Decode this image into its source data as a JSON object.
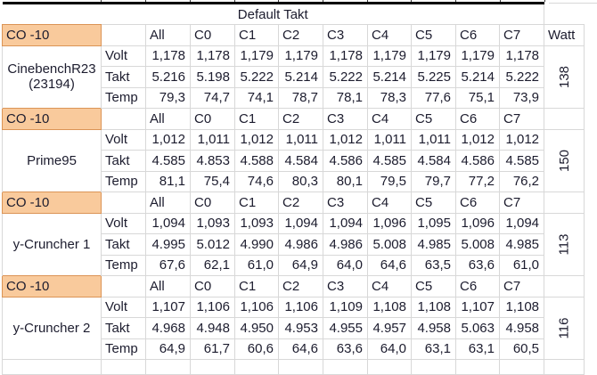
{
  "title": "Default Takt",
  "watt_header": "Watt",
  "columns": [
    "All",
    "C0",
    "C1",
    "C2",
    "C3",
    "C4",
    "C5",
    "C6",
    "C7"
  ],
  "colors": {
    "highlight_fill": "#f9ca9c",
    "highlight_border": "#db9456",
    "gridline": "#d8d8d8",
    "thick_border": "#000000"
  },
  "sections": [
    {
      "co_label": "CO -10",
      "name_lines": [
        "CinebenchR23",
        "(23194)"
      ],
      "watt": "138",
      "rows": [
        {
          "metric": "Volt",
          "values": [
            "1,178",
            "1,178",
            "1,179",
            "1,179",
            "1,178",
            "1,179",
            "1,179",
            "1,179",
            "1,178"
          ]
        },
        {
          "metric": "Takt",
          "values": [
            "5.216",
            "5.198",
            "5.222",
            "5.214",
            "5.222",
            "5.214",
            "5.225",
            "5.214",
            "5.222"
          ]
        },
        {
          "metric": "Temp",
          "values": [
            "79,3",
            "74,7",
            "74,1",
            "78,7",
            "78,1",
            "78,3",
            "77,6",
            "75,1",
            "73,9"
          ]
        }
      ]
    },
    {
      "co_label": "CO -10",
      "name_lines": [
        "Prime95"
      ],
      "watt": "150",
      "rows": [
        {
          "metric": "Volt",
          "values": [
            "1,012",
            "1,011",
            "1,012",
            "1,011",
            "1,012",
            "1,011",
            "1,011",
            "1,012",
            "1,012"
          ]
        },
        {
          "metric": "Takt",
          "values": [
            "4.585",
            "4.853",
            "4.588",
            "4.584",
            "4.586",
            "4.585",
            "4.584",
            "4.586",
            "4.585"
          ]
        },
        {
          "metric": "Temp",
          "values": [
            "81,1",
            "75,4",
            "74,6",
            "80,3",
            "80,1",
            "79,5",
            "79,7",
            "77,2",
            "76,2"
          ]
        }
      ]
    },
    {
      "co_label": "CO -10",
      "name_lines": [
        "y-Cruncher 1"
      ],
      "watt": "113",
      "rows": [
        {
          "metric": "Volt",
          "values": [
            "1,094",
            "1,093",
            "1,093",
            "1,094",
            "1,094",
            "1,096",
            "1,095",
            "1,096",
            "1,094"
          ]
        },
        {
          "metric": "Takt",
          "values": [
            "4.995",
            "5.012",
            "4.990",
            "4.986",
            "4.986",
            "5.008",
            "4.985",
            "5.008",
            "4.985"
          ]
        },
        {
          "metric": "Temp",
          "values": [
            "67,6",
            "62,1",
            "61,0",
            "64,9",
            "64,0",
            "64,6",
            "63,5",
            "63,6",
            "61,0"
          ]
        }
      ]
    },
    {
      "co_label": "CO -10",
      "name_lines": [
        "y-Cruncher 2"
      ],
      "watt": "116",
      "rows": [
        {
          "metric": "Volt",
          "values": [
            "1,107",
            "1,106",
            "1,106",
            "1,106",
            "1,109",
            "1,108",
            "1,108",
            "1,107",
            "1,108"
          ]
        },
        {
          "metric": "Takt",
          "values": [
            "4.968",
            "4.948",
            "4.950",
            "4.953",
            "4.955",
            "4.957",
            "4.958",
            "5.063",
            "4.958"
          ]
        },
        {
          "metric": "Temp",
          "values": [
            "64,9",
            "61,7",
            "60,6",
            "64,6",
            "63,6",
            "64,0",
            "63,1",
            "63,1",
            "60,5"
          ]
        }
      ]
    }
  ]
}
